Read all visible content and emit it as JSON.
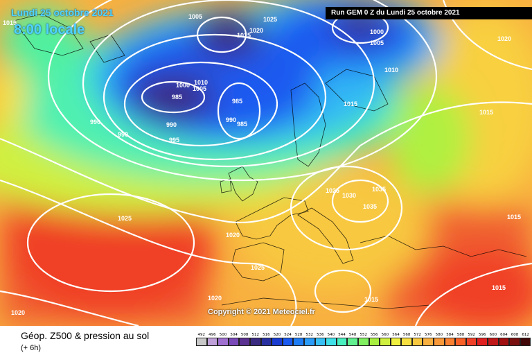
{
  "header": {
    "date": "Lundi 25 octobre 2021",
    "time": "8:00 locale",
    "run": "Run GEM 0 Z du Lundi 25 octobre 2021"
  },
  "copyright": "Copyright © 2021 Meteociel.fr",
  "caption": {
    "main": "Géop. Z500 & pression au sol",
    "sub": "(+ 6h)"
  },
  "scale": [
    {
      "label": "492",
      "color": "#c8c8c8"
    },
    {
      "label": "496",
      "color": "#bfa0d8"
    },
    {
      "label": "500",
      "color": "#a070d0"
    },
    {
      "label": "504",
      "color": "#7a4ab8"
    },
    {
      "label": "508",
      "color": "#5a3090"
    },
    {
      "label": "512",
      "color": "#3a2a80"
    },
    {
      "label": "516",
      "color": "#2830a0"
    },
    {
      "label": "520",
      "color": "#1a3cd0"
    },
    {
      "label": "524",
      "color": "#1a5af0"
    },
    {
      "label": "528",
      "color": "#1e7cf5"
    },
    {
      "label": "532",
      "color": "#2a9cf8"
    },
    {
      "label": "536",
      "color": "#38c0f5"
    },
    {
      "label": "540",
      "color": "#40e0e8"
    },
    {
      "label": "544",
      "color": "#48f0c0"
    },
    {
      "label": "548",
      "color": "#60f090"
    },
    {
      "label": "552",
      "color": "#80f060"
    },
    {
      "label": "556",
      "color": "#a8f040"
    },
    {
      "label": "560",
      "color": "#d0f040"
    },
    {
      "label": "564",
      "color": "#f0f040"
    },
    {
      "label": "568",
      "color": "#f8e040"
    },
    {
      "label": "572",
      "color": "#f8c840"
    },
    {
      "label": "576",
      "color": "#f8b040"
    },
    {
      "label": "580",
      "color": "#f89838"
    },
    {
      "label": "584",
      "color": "#f88030"
    },
    {
      "label": "588",
      "color": "#f86028"
    },
    {
      "label": "592",
      "color": "#f04028"
    },
    {
      "label": "596",
      "color": "#e02020"
    },
    {
      "label": "600",
      "color": "#c01818"
    },
    {
      "label": "604",
      "color": "#a01010"
    },
    {
      "label": "608",
      "color": "#781010"
    },
    {
      "label": "612",
      "color": "#400808"
    }
  ],
  "isobar_labels": [
    "1015",
    "1005",
    "1010",
    "1025",
    "1000",
    "1020",
    "990",
    "985",
    "995",
    "1030",
    "1035"
  ]
}
